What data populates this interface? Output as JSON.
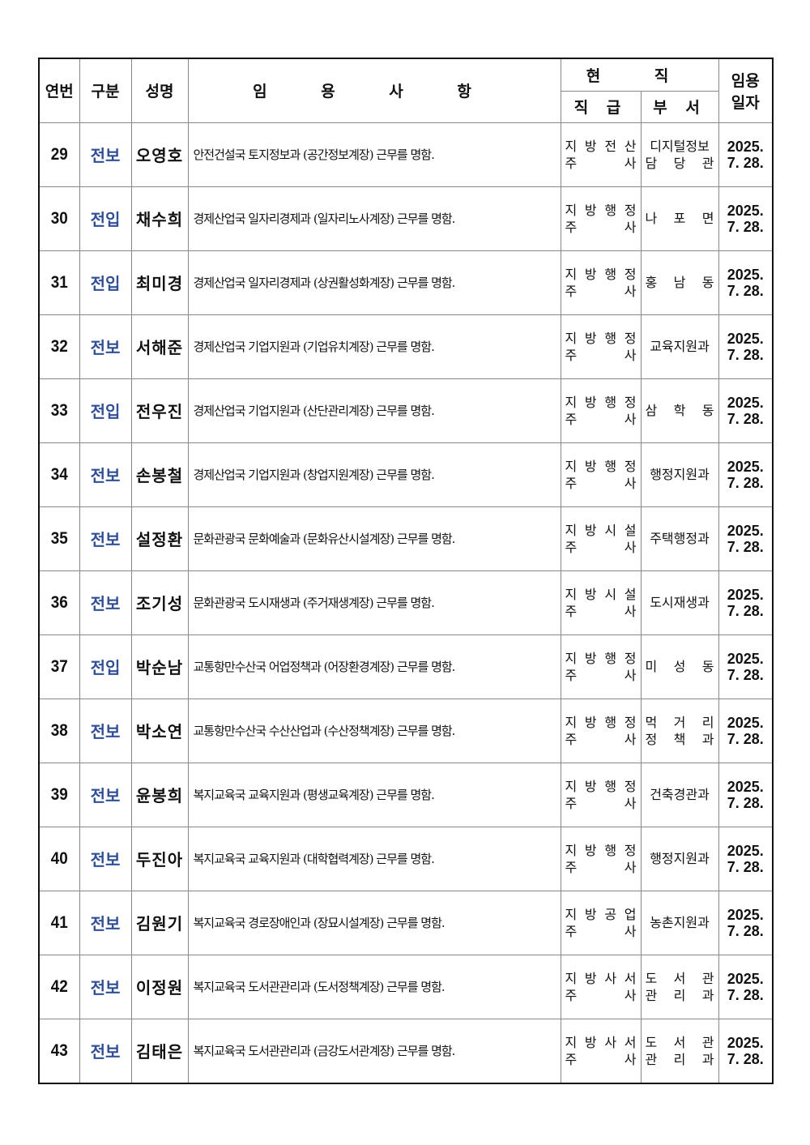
{
  "header": {
    "no": "연번",
    "type": "구분",
    "name": "성명",
    "detail": "임 용 사 항",
    "current": "현 직",
    "rank": "직 급",
    "dept": "부 서",
    "date_top": "임용",
    "date_bottom": "일자"
  },
  "colors": {
    "type_text": "#2f4f9a"
  },
  "rows": [
    {
      "no": "29",
      "type": "전보",
      "name": "오영호",
      "detail": "안전건설국 토지정보과 (공간정보계장) 근무를 명함.",
      "rank": [
        "지 방 전 산",
        "주 사"
      ],
      "dept": [
        "디지털정보",
        "담 당 관"
      ],
      "date": [
        "2025.",
        "7. 28."
      ]
    },
    {
      "no": "30",
      "type": "전입",
      "name": "채수희",
      "detail": "경제산업국 일자리경제과 (일자리노사계장) 근무를 명함.",
      "rank": [
        "지 방 행 정",
        "주 사"
      ],
      "dept": [
        "나 포 면"
      ],
      "date": [
        "2025.",
        "7. 28."
      ]
    },
    {
      "no": "31",
      "type": "전입",
      "name": "최미경",
      "detail": "경제산업국 일자리경제과 (상권활성화계장) 근무를 명함.",
      "rank": [
        "지 방 행 정",
        "주 사"
      ],
      "dept": [
        "홍 남 동"
      ],
      "date": [
        "2025.",
        "7. 28."
      ]
    },
    {
      "no": "32",
      "type": "전보",
      "name": "서해준",
      "detail": "경제산업국 기업지원과 (기업유치계장) 근무를 명함.",
      "rank": [
        "지 방 행 정",
        "주 사"
      ],
      "dept": [
        "교육지원과"
      ],
      "date": [
        "2025.",
        "7. 28."
      ]
    },
    {
      "no": "33",
      "type": "전입",
      "name": "전우진",
      "detail": "경제산업국 기업지원과 (산단관리계장) 근무를 명함.",
      "rank": [
        "지 방 행 정",
        "주 사"
      ],
      "dept": [
        "삼 학 동"
      ],
      "date": [
        "2025.",
        "7. 28."
      ]
    },
    {
      "no": "34",
      "type": "전보",
      "name": "손봉철",
      "detail": "경제산업국 기업지원과 (창업지원계장) 근무를 명함.",
      "rank": [
        "지 방 행 정",
        "주 사"
      ],
      "dept": [
        "행정지원과"
      ],
      "date": [
        "2025.",
        "7. 28."
      ]
    },
    {
      "no": "35",
      "type": "전보",
      "name": "설정환",
      "detail": "문화관광국 문화예술과 (문화유산시설계장) 근무를 명함.",
      "rank": [
        "지 방 시 설",
        "주 사"
      ],
      "dept": [
        "주택행정과"
      ],
      "date": [
        "2025.",
        "7. 28."
      ]
    },
    {
      "no": "36",
      "type": "전보",
      "name": "조기성",
      "detail": "문화관광국 도시재생과 (주거재생계장) 근무를 명함.",
      "rank": [
        "지 방 시 설",
        "주 사"
      ],
      "dept": [
        "도시재생과"
      ],
      "date": [
        "2025.",
        "7. 28."
      ]
    },
    {
      "no": "37",
      "type": "전입",
      "name": "박순남",
      "detail": "교통항만수산국 어업정책과 (어장환경계장) 근무를 명함.",
      "rank": [
        "지 방 행 정",
        "주 사"
      ],
      "dept": [
        "미 성 동"
      ],
      "date": [
        "2025.",
        "7. 28."
      ]
    },
    {
      "no": "38",
      "type": "전보",
      "name": "박소연",
      "detail": "교통항만수산국 수산산업과 (수산정책계장) 근무를 명함.",
      "rank": [
        "지 방 행 정",
        "주 사"
      ],
      "dept": [
        "먹 거 리",
        "정 책 과"
      ],
      "date": [
        "2025.",
        "7. 28."
      ]
    },
    {
      "no": "39",
      "type": "전보",
      "name": "윤봉희",
      "detail": "복지교육국 교육지원과 (평생교육계장) 근무를 명함.",
      "rank": [
        "지 방 행 정",
        "주 사"
      ],
      "dept": [
        "건축경관과"
      ],
      "date": [
        "2025.",
        "7. 28."
      ]
    },
    {
      "no": "40",
      "type": "전보",
      "name": "두진아",
      "detail": "복지교육국 교육지원과 (대학협력계장) 근무를 명함.",
      "rank": [
        "지 방 행 정",
        "주 사"
      ],
      "dept": [
        "행정지원과"
      ],
      "date": [
        "2025.",
        "7. 28."
      ]
    },
    {
      "no": "41",
      "type": "전보",
      "name": "김원기",
      "detail": "복지교육국 경로장애인과 (장묘시설계장) 근무를 명함.",
      "rank": [
        "지 방 공 업",
        "주 사"
      ],
      "dept": [
        "농촌지원과"
      ],
      "date": [
        "2025.",
        "7. 28."
      ]
    },
    {
      "no": "42",
      "type": "전보",
      "name": "이정원",
      "detail": "복지교육국 도서관관리과 (도서정책계장) 근무를 명함.",
      "rank": [
        "지 방 사 서",
        "주 사"
      ],
      "dept": [
        "도 서 관",
        "관 리 과"
      ],
      "date": [
        "2025.",
        "7. 28."
      ]
    },
    {
      "no": "43",
      "type": "전보",
      "name": "김태은",
      "detail": "복지교육국 도서관관리과 (금강도서관계장) 근무를 명함.",
      "rank": [
        "지 방 사 서",
        "주 사"
      ],
      "dept": [
        "도 서 관",
        "관 리 과"
      ],
      "date": [
        "2025.",
        "7. 28."
      ]
    }
  ]
}
